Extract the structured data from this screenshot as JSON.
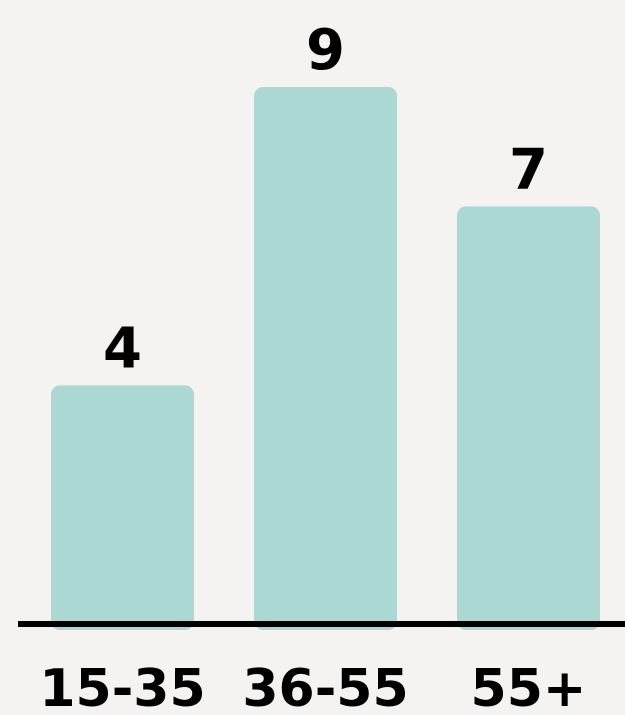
{
  "chart_data": {
    "type": "bar",
    "categories": [
      "15-35",
      "36-55",
      "55+"
    ],
    "values": [
      4,
      9,
      7
    ],
    "value_labels": [
      "4",
      "9",
      "7"
    ],
    "title": "",
    "xlabel": "",
    "ylabel": "",
    "ylim": [
      0,
      9
    ],
    "grid": false,
    "legend": "none",
    "colors": {
      "bar": "#abd8d3",
      "baseline": "#000000",
      "text": "#000000",
      "background": "#f4f3f1"
    }
  }
}
